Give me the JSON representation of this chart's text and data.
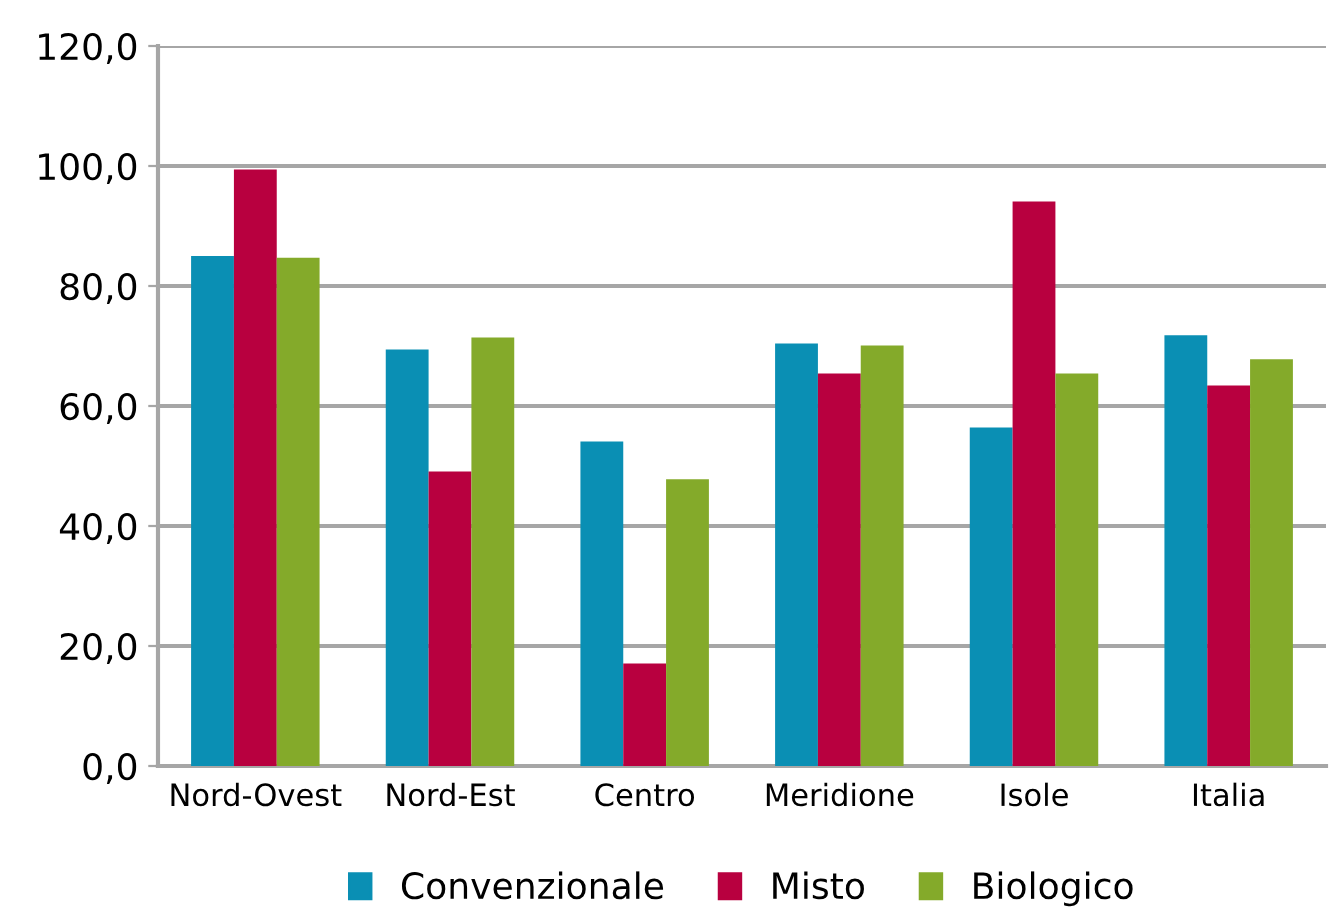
{
  "chart_data": {
    "type": "bar",
    "categories": [
      "Nord-Ovest",
      "Nord-Est",
      "Centro",
      "Meridione",
      "Isole",
      "Italia"
    ],
    "series": [
      {
        "name": "Convenzionale",
        "color": "#0a8fb4",
        "values": [
          85.0,
          69.4,
          54.1,
          70.4,
          56.4,
          71.8
        ]
      },
      {
        "name": "Misto",
        "color": "#b8003f",
        "values": [
          99.4,
          49.1,
          17.1,
          65.4,
          94.1,
          63.4
        ]
      },
      {
        "name": "Biologico",
        "color": "#84aa2a",
        "values": [
          84.7,
          71.4,
          47.8,
          70.1,
          65.4,
          67.8
        ]
      }
    ],
    "ylim": [
      0,
      120
    ],
    "yticks": [
      {
        "value": 0,
        "label": "0,0"
      },
      {
        "value": 20,
        "label": "20,0"
      },
      {
        "value": 40,
        "label": "40,0"
      },
      {
        "value": 60,
        "label": "60,0"
      },
      {
        "value": 80,
        "label": "80,0"
      },
      {
        "value": 100,
        "label": "100,0"
      },
      {
        "value": 120,
        "label": "120,0"
      }
    ],
    "grid": "y",
    "legend": "bottom"
  }
}
